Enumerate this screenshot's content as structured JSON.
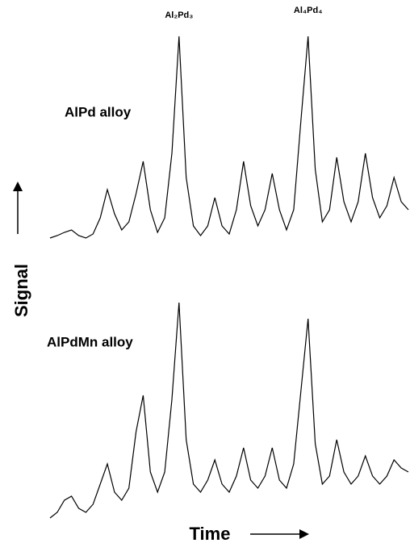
{
  "chart_data": [
    {
      "type": "line",
      "ylabel": "Signal",
      "annotations": [
        "Al₂Pd₃",
        "Al₄Pd₄"
      ],
      "annotation_x": [
        36,
        72
      ],
      "xlim": [
        0,
        100
      ],
      "ylim": [
        0,
        270
      ],
      "x": [
        0,
        2,
        4,
        6,
        8,
        10,
        12,
        14,
        16,
        18,
        20,
        22,
        24,
        26,
        28,
        30,
        32,
        34,
        36,
        38,
        40,
        42,
        44,
        46,
        48,
        50,
        52,
        54,
        56,
        58,
        60,
        62,
        64,
        66,
        68,
        70,
        72,
        74,
        76,
        78,
        80,
        82,
        84,
        86,
        88,
        90,
        92,
        94,
        96,
        98,
        100
      ],
      "series": [
        {
          "name": "AlPd alloy",
          "color": "#000000",
          "values": [
            5,
            8,
            12,
            15,
            8,
            5,
            10,
            30,
            65,
            35,
            15,
            25,
            60,
            100,
            40,
            12,
            30,
            110,
            255,
            80,
            20,
            8,
            20,
            55,
            20,
            10,
            40,
            100,
            45,
            20,
            40,
            85,
            40,
            15,
            40,
            150,
            255,
            90,
            25,
            40,
            105,
            50,
            25,
            50,
            110,
            55,
            30,
            45,
            80,
            50,
            40
          ]
        }
      ]
    },
    {
      "type": "line",
      "xlabel": "Time",
      "xlim": [
        0,
        100
      ],
      "ylim": [
        0,
        270
      ],
      "x": [
        0,
        2,
        4,
        6,
        8,
        10,
        12,
        14,
        16,
        18,
        20,
        22,
        24,
        26,
        28,
        30,
        32,
        34,
        36,
        38,
        40,
        42,
        44,
        46,
        48,
        50,
        52,
        54,
        56,
        58,
        60,
        62,
        64,
        66,
        68,
        70,
        72,
        74,
        76,
        78,
        80,
        82,
        84,
        86,
        88,
        90,
        92,
        94,
        96,
        98,
        100
      ],
      "series": [
        {
          "name": "AlPdMn alloy",
          "color": "#000000",
          "values": [
            3,
            10,
            25,
            30,
            15,
            10,
            20,
            45,
            70,
            35,
            25,
            40,
            110,
            155,
            60,
            35,
            60,
            150,
            270,
            100,
            45,
            35,
            50,
            75,
            45,
            35,
            55,
            90,
            50,
            40,
            55,
            90,
            50,
            40,
            70,
            160,
            250,
            95,
            45,
            55,
            100,
            60,
            45,
            55,
            80,
            55,
            45,
            55,
            75,
            65,
            60
          ]
        }
      ]
    }
  ]
}
